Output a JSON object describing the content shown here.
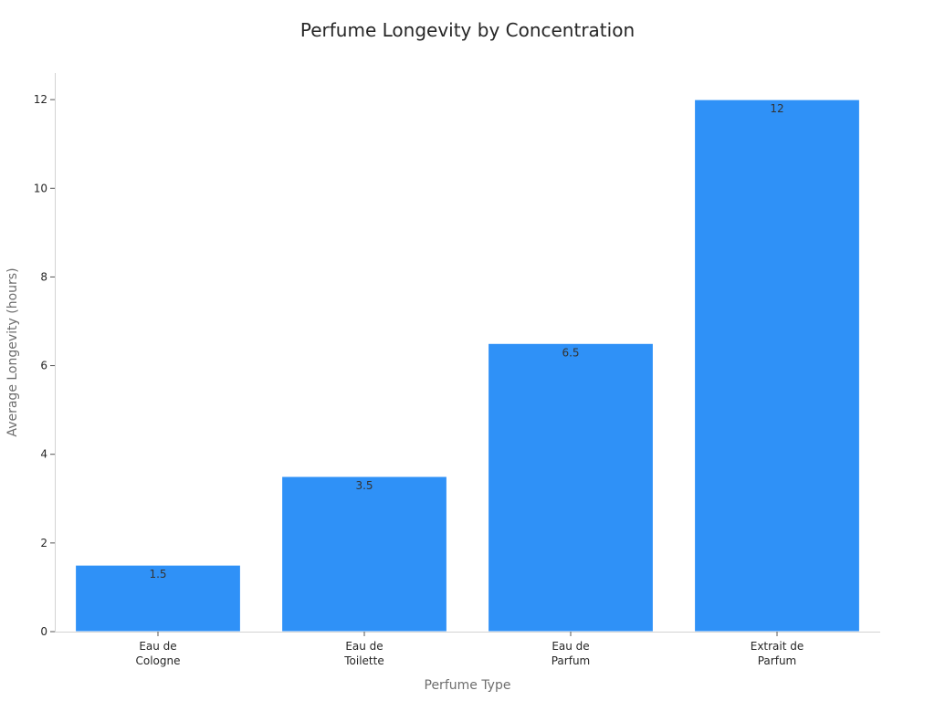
{
  "chart_data": {
    "type": "bar",
    "title": "Perfume Longevity by Concentration",
    "xlabel": "Perfume Type",
    "ylabel": "Average Longevity (hours)",
    "categories": [
      [
        "Eau de",
        "Cologne"
      ],
      [
        "Eau de",
        "Toilette"
      ],
      [
        "Eau de",
        "Parfum"
      ],
      [
        "Extrait de",
        "Parfum"
      ]
    ],
    "values": [
      1.5,
      3.5,
      6.5,
      12
    ],
    "data_labels": [
      "1.5",
      "3.5",
      "6.5",
      "12"
    ],
    "ylim": [
      0,
      12.6
    ],
    "yticks": [
      0,
      2,
      4,
      6,
      8,
      10,
      12
    ],
    "bar_color": "#2f91f7",
    "grid": false,
    "legend": "none"
  }
}
